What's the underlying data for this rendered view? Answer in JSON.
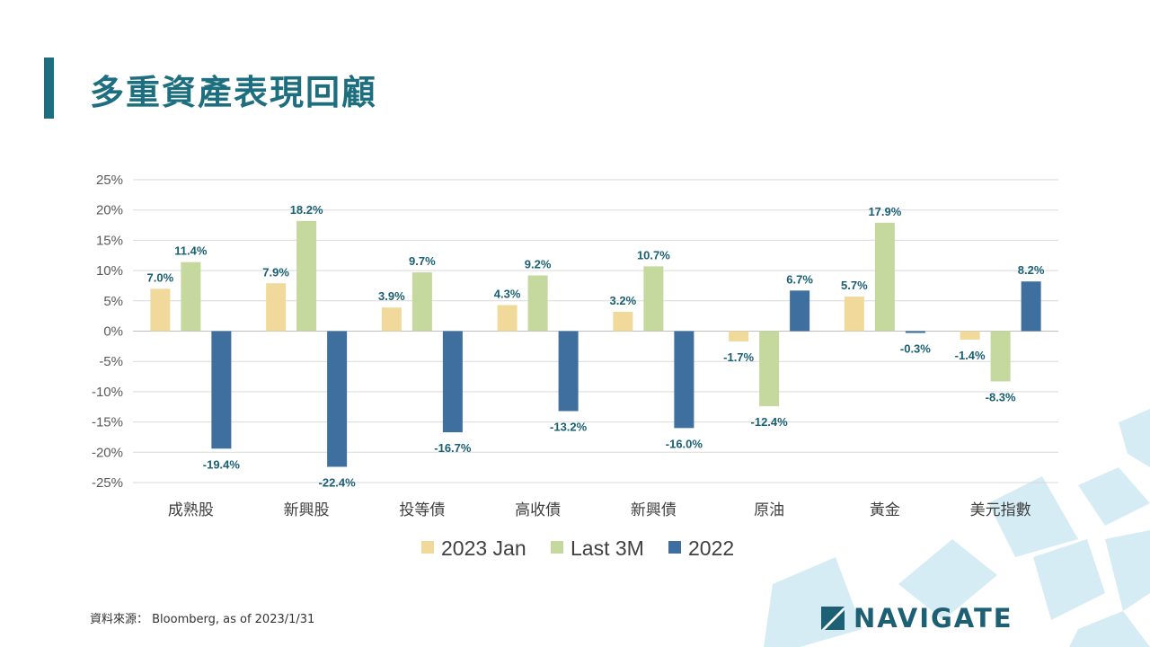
{
  "title": "多重資產表現回顧",
  "source": "資料來源： Bloomberg, as of 2023/1/31",
  "logo_text": "NAVIGATE",
  "colors": {
    "accent": "#1d6f80",
    "series": [
      "#f0d99b",
      "#c5d89d",
      "#3f6f9f"
    ],
    "label": "#1a6073"
  },
  "chart_data": {
    "type": "bar",
    "categories": [
      "成熟股",
      "新興股",
      "投等債",
      "高收債",
      "新興債",
      "原油",
      "黃金",
      "美元指數"
    ],
    "series": [
      {
        "name": "2023 Jan",
        "values": [
          7.0,
          7.9,
          3.9,
          4.3,
          3.2,
          -1.7,
          5.7,
          -1.4
        ]
      },
      {
        "name": "Last 3M",
        "values": [
          11.4,
          18.2,
          9.7,
          9.2,
          10.7,
          -12.4,
          17.9,
          -8.3
        ]
      },
      {
        "name": "2022",
        "values": [
          -19.4,
          -22.4,
          -16.7,
          -13.2,
          -16.0,
          6.7,
          -0.3,
          8.2
        ]
      }
    ],
    "ylim": [
      -25,
      25
    ],
    "yticks": [
      25,
      20,
      15,
      10,
      5,
      0,
      -5,
      -10,
      -15,
      -20,
      -25
    ],
    "tick_format": "{v}%",
    "value_format": "{v}%",
    "grid": true,
    "legend": "bottom"
  }
}
